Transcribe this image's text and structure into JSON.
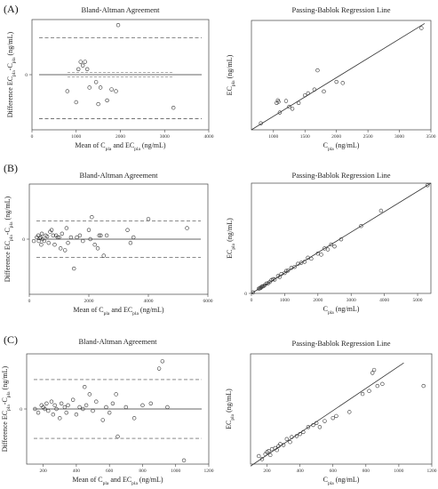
{
  "panel_labels": [
    "(A)",
    "(B)",
    "(C)"
  ],
  "chart_data": [
    {
      "type": "scatter",
      "kind": "bland-altman",
      "panel": "(A)",
      "title": "Bland-Altman Agreement",
      "xlabel": "Mean of  Cpla and ECpla (ng/mL)",
      "ylabel": "Difference ECpla-Cpla (ng/mL)",
      "xlim": [
        0,
        4000
      ],
      "ylim": [
        -3,
        3
      ],
      "xticks": [
        "0",
        "1000",
        "2000",
        "3000",
        "4000"
      ],
      "yticks": [
        "0"
      ],
      "mean_line": 0,
      "ci_lines": [
        0.12,
        -0.12
      ],
      "loa_lines": [
        2.0,
        -2.4
      ],
      "x": [
        800,
        1000,
        1050,
        1100,
        1150,
        1200,
        1250,
        1300,
        1450,
        1500,
        1550,
        1700,
        1800,
        1900,
        1950,
        3200
      ],
      "y": [
        -0.9,
        -1.5,
        0.3,
        0.7,
        0.5,
        0.7,
        0.3,
        -0.7,
        -0.4,
        -1.6,
        -0.7,
        -1.4,
        -0.8,
        -0.9,
        2.7,
        -1.8
      ]
    },
    {
      "type": "scatter",
      "kind": "passing-bablok",
      "panel": "(A)",
      "title": "Passing-Bablok Regression Line",
      "xlabel": "Cpla (ng/mL)",
      "ylabel": "ECpla (ng/mL)",
      "xlim": [
        650,
        3500
      ],
      "ylim": [
        650,
        3500
      ],
      "xticks": [
        "1000",
        "1500",
        "2000",
        "2500",
        "3000",
        "3500"
      ],
      "yticks": [],
      "x": [
        800,
        1050,
        1070,
        1080,
        1100,
        1200,
        1250,
        1300,
        1400,
        1500,
        1550,
        1650,
        1700,
        1800,
        2000,
        2100,
        3350
      ],
      "y": [
        820,
        1350,
        1420,
        1380,
        1100,
        1400,
        1250,
        1200,
        1350,
        1550,
        1600,
        1700,
        2200,
        1650,
        1900,
        1870,
        3300
      ],
      "line": [
        [
          650,
          650
        ],
        [
          3400,
          3420
        ]
      ]
    },
    {
      "type": "scatter",
      "kind": "bland-altman",
      "panel": "(B)",
      "title": "Bland-Altman Agreement",
      "xlabel": "Mean of  Cpla and ECpla (ng/mL)",
      "ylabel": "Difference ECpla-Cpla (ng/mL)",
      "xlim": [
        0,
        6000
      ],
      "ylim": [
        -3,
        3
      ],
      "xticks": [
        "0",
        "2000",
        "4000",
        "6000"
      ],
      "yticks": [
        "0"
      ],
      "mean_line": 0,
      "ci_lines": [],
      "loa_lines": [
        1.0,
        -1.0
      ],
      "x": [
        150,
        250,
        300,
        320,
        350,
        380,
        400,
        420,
        450,
        500,
        550,
        600,
        650,
        700,
        750,
        800,
        850,
        900,
        950,
        1000,
        1050,
        1100,
        1200,
        1250,
        1300,
        1400,
        1500,
        1600,
        1700,
        1800,
        2000,
        2050,
        2100,
        2200,
        2300,
        2350,
        2400,
        2500,
        2600,
        3300,
        3400,
        3500,
        4000,
        5300
      ],
      "y": [
        -0.1,
        0.1,
        0.2,
        -0.1,
        0.05,
        0.1,
        -0.3,
        0.3,
        0.0,
        -0.1,
        0.2,
        0.15,
        -0.2,
        0.4,
        0.5,
        0.2,
        -0.3,
        0.2,
        0.1,
        0.1,
        -0.5,
        0.3,
        -0.6,
        0.6,
        -0.2,
        0.1,
        -1.6,
        0.1,
        0.2,
        -0.1,
        0.5,
        0.0,
        1.2,
        -0.3,
        -0.5,
        0.2,
        0.2,
        -0.9,
        0.2,
        0.5,
        -0.2,
        0.1,
        1.1,
        0.6
      ]
    },
    {
      "type": "scatter",
      "kind": "passing-bablok",
      "panel": "(B)",
      "title": "Passing-Bablok Regression Line",
      "xlabel": "Cpla (ng/mL)",
      "ylabel": "ECpla (ng/mL)",
      "xlim": [
        0,
        5400
      ],
      "ylim": [
        0,
        5400
      ],
      "xticks": [
        "0",
        "1000",
        "2000",
        "3000",
        "4000",
        "5000"
      ],
      "yticks": [
        "0"
      ],
      "x": [
        50,
        220,
        250,
        280,
        300,
        330,
        360,
        400,
        450,
        500,
        550,
        600,
        650,
        700,
        800,
        850,
        900,
        1000,
        1050,
        1100,
        1200,
        1300,
        1400,
        1500,
        1600,
        1700,
        1800,
        2000,
        2100,
        2200,
        2300,
        2400,
        2500,
        2700,
        3300,
        3900,
        5300
      ],
      "y": [
        50,
        230,
        250,
        270,
        320,
        340,
        350,
        400,
        480,
        500,
        560,
        650,
        700,
        680,
        850,
        800,
        950,
        1000,
        1100,
        1120,
        1250,
        1300,
        1450,
        1500,
        1550,
        1750,
        1700,
        1950,
        1900,
        2200,
        2150,
        2400,
        2300,
        2650,
        3300,
        4050,
        5300
      ],
      "line": [
        [
          0,
          0
        ],
        [
          5400,
          5400
        ]
      ]
    },
    {
      "type": "scatter",
      "kind": "bland-altman",
      "panel": "(C)",
      "title": "Bland-Altman Agreement",
      "xlabel": "Mean of  Cpla and ECpla (ng/mL)",
      "ylabel": "Difference ECpla-Cpla (ng/mL)",
      "xlim": [
        100,
        1200
      ],
      "ylim": [
        -3,
        3
      ],
      "xticks": [
        "200",
        "400",
        "600",
        "800",
        "1000",
        "1200"
      ],
      "yticks": [
        "0"
      ],
      "mean_line": 0,
      "ci_lines": [],
      "loa_lines": [
        1.6,
        -1.6
      ],
      "x": [
        150,
        170,
        190,
        200,
        210,
        220,
        230,
        250,
        260,
        270,
        280,
        300,
        310,
        330,
        340,
        350,
        380,
        400,
        420,
        440,
        450,
        460,
        480,
        500,
        520,
        560,
        580,
        600,
        620,
        640,
        650,
        700,
        750,
        800,
        850,
        900,
        920,
        950,
        1050
      ],
      "y": [
        0.0,
        -0.2,
        0.2,
        0.1,
        0.0,
        0.3,
        -0.1,
        0.4,
        -0.3,
        0.2,
        0.0,
        -0.5,
        0.3,
        0.1,
        -0.2,
        0.2,
        0.5,
        -0.3,
        0.1,
        0.0,
        1.2,
        0.2,
        0.8,
        -0.1,
        0.4,
        -0.6,
        0.1,
        -0.2,
        0.3,
        0.8,
        -1.5,
        0.1,
        -0.5,
        0.2,
        0.3,
        2.2,
        2.6,
        0.1,
        -2.8
      ]
    },
    {
      "type": "scatter",
      "kind": "passing-bablok",
      "panel": "(C)",
      "title": "Passing-Bablok Regression Line",
      "xlabel": "Cpla (ng/mL)",
      "ylabel": "ECpla (ng/mL)",
      "xlim": [
        100,
        1200
      ],
      "ylim": [
        100,
        1200
      ],
      "xticks": [
        "200",
        "400",
        "600",
        "800",
        "1000",
        "1200"
      ],
      "yticks": [],
      "x": [
        150,
        170,
        190,
        200,
        210,
        220,
        230,
        250,
        260,
        270,
        280,
        300,
        320,
        340,
        350,
        380,
        400,
        420,
        450,
        480,
        500,
        520,
        550,
        600,
        620,
        700,
        780,
        820,
        840,
        850,
        870,
        900,
        1150
      ],
      "y": [
        180,
        150,
        200,
        220,
        230,
        190,
        250,
        260,
        240,
        280,
        300,
        290,
        350,
        320,
        370,
        380,
        400,
        420,
        470,
        490,
        510,
        470,
        530,
        560,
        580,
        620,
        800,
        830,
        1010,
        1040,
        880,
        900,
        880
      ],
      "line": [
        [
          100,
          80
        ],
        [
          1030,
          1110
        ]
      ]
    }
  ]
}
